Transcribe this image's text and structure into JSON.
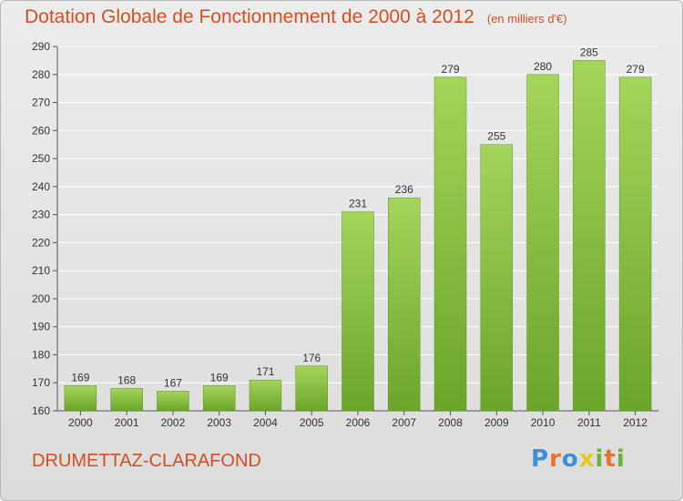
{
  "header": {
    "title": "Dotation Globale de Fonctionnement de 2000 à 2012",
    "subtitle": "(en milliers d'€)"
  },
  "footer": {
    "commune": "DRUMETTAZ-CLARAFOND",
    "brand": [
      "P",
      "r",
      "o",
      "x",
      "i",
      "t",
      "i"
    ],
    "brand_colors": [
      "#3d8fd6",
      "#e8732a",
      "#3d8fd6",
      "#e8c81e",
      "#6fb23a",
      "#e8732a",
      "#6fb23a"
    ]
  },
  "colors": {
    "bar_light": "#a5d45a",
    "bar_dark": "#6aa52a",
    "grid": "#ffffff",
    "title": "#d3501e"
  },
  "chart_data": {
    "type": "bar",
    "title": "Dotation Globale de Fonctionnement de 2000 à 2012",
    "subtitle": "(en milliers d'€)",
    "categories": [
      "2000",
      "2001",
      "2002",
      "2003",
      "2004",
      "2005",
      "2006",
      "2007",
      "2008",
      "2009",
      "2010",
      "2011",
      "2012"
    ],
    "values": [
      169,
      168,
      167,
      169,
      171,
      176,
      231,
      236,
      279,
      255,
      280,
      285,
      279
    ],
    "ylim": [
      160,
      290
    ],
    "yticks": [
      160,
      170,
      180,
      190,
      200,
      210,
      220,
      230,
      240,
      250,
      260,
      270,
      280,
      290
    ],
    "grid": true,
    "data_labels": true
  }
}
